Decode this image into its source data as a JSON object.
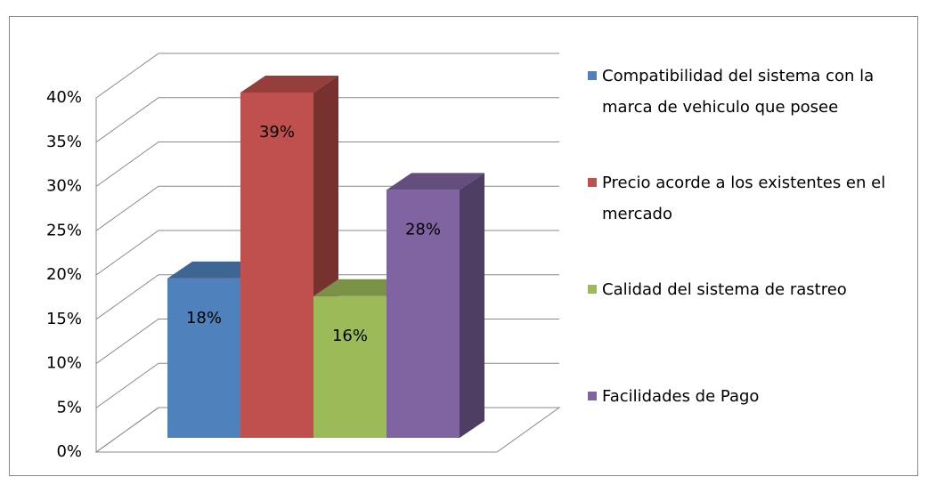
{
  "chart_data": {
    "type": "bar3d",
    "series": [
      {
        "name": "Compatibilidad del sistema con la marca de vehiculo que posee",
        "color": "#4f81bd",
        "values": [
          18
        ],
        "value_labels": [
          "18%"
        ]
      },
      {
        "name": "Precio acorde a los existentes en el mercado",
        "color": "#c0504d",
        "values": [
          39
        ],
        "value_labels": [
          "39%"
        ]
      },
      {
        "name": "Calidad del sistema de rastreo",
        "color": "#9bbb59",
        "values": [
          16
        ],
        "value_labels": [
          "16%"
        ]
      },
      {
        "name": "Facilidades de Pago",
        "color": "#8064a2",
        "values": [
          28
        ],
        "value_labels": [
          "28%"
        ]
      }
    ],
    "ylim": [
      0,
      40
    ],
    "yticks": [
      {
        "value": 0,
        "label": "0%"
      },
      {
        "value": 5,
        "label": "5%"
      },
      {
        "value": 10,
        "label": "10%"
      },
      {
        "value": 15,
        "label": "15%"
      },
      {
        "value": 20,
        "label": "20%"
      },
      {
        "value": 25,
        "label": "25%"
      },
      {
        "value": 30,
        "label": "30%"
      },
      {
        "value": 35,
        "label": "35%"
      },
      {
        "value": 40,
        "label": "40%"
      }
    ],
    "grid": true,
    "legend": "right"
  }
}
